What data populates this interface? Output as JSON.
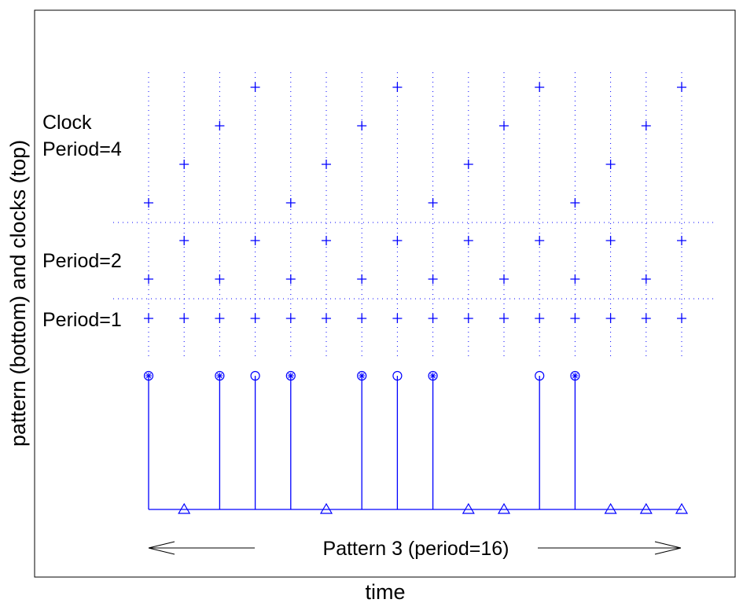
{
  "chart_data": {
    "type": "scatter",
    "title": "",
    "xlabel": "time",
    "ylabel": "pattern (bottom) and clocks (top)",
    "grid": "dotted vertical lines at each time step",
    "x": [
      0,
      1,
      2,
      3,
      4,
      5,
      6,
      7,
      8,
      9,
      10,
      11,
      12,
      13,
      14,
      15
    ],
    "clocks": [
      {
        "label_lines": [
          "Period=1"
        ],
        "period": 1,
        "levels": [
          0,
          0,
          0,
          0,
          0,
          0,
          0,
          0,
          0,
          0,
          0,
          0,
          0,
          0,
          0,
          0
        ]
      },
      {
        "label_lines": [
          "Period=2"
        ],
        "period": 2,
        "levels": [
          0,
          1,
          0,
          1,
          0,
          1,
          0,
          1,
          0,
          1,
          0,
          1,
          0,
          1,
          0,
          1
        ]
      },
      {
        "label_lines": [
          "Clock",
          "Period=4"
        ],
        "period": 4,
        "levels": [
          0,
          1,
          2,
          3,
          0,
          1,
          2,
          3,
          0,
          1,
          2,
          3,
          0,
          1,
          2,
          3
        ]
      }
    ],
    "pattern": {
      "values": [
        1,
        0,
        1,
        1,
        1,
        0,
        1,
        1,
        1,
        0,
        0,
        1,
        1,
        0,
        0,
        0
      ],
      "markers": [
        "circle-star",
        "triangle",
        "circle-star",
        "circle",
        "circle-star",
        "triangle",
        "circle-star",
        "circle",
        "circle-star",
        "triangle",
        "triangle",
        "circle",
        "circle-star",
        "triangle",
        "triangle",
        "triangle"
      ],
      "annotation": "Pattern 3 (period=16)"
    },
    "color": "#0000ff"
  }
}
